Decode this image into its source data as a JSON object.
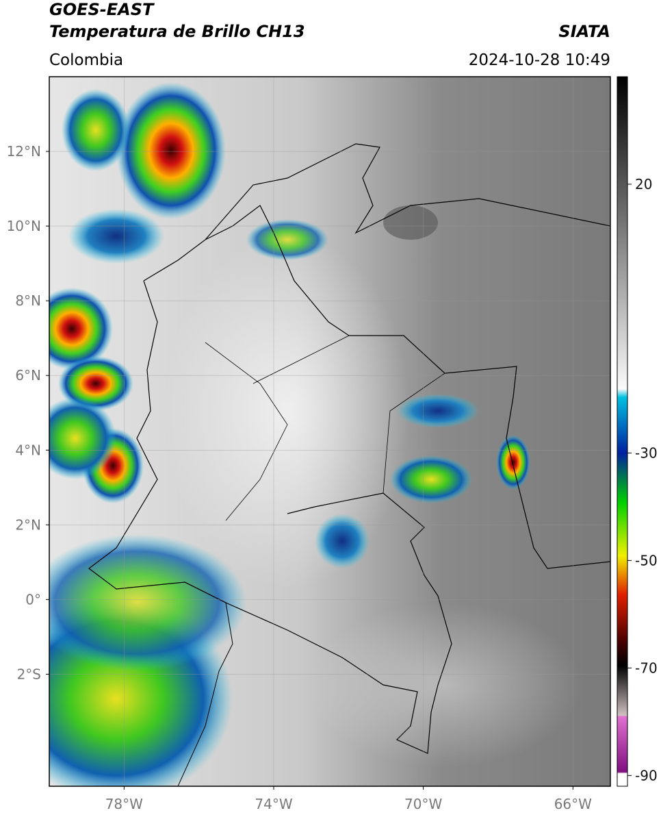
{
  "header": {
    "title": "GOES-EAST",
    "subtitle": "Temperatura de Brillo CH13",
    "region": "Colombia",
    "source": "SIATA",
    "datetime": "2024-10-28 10:49"
  },
  "map": {
    "lonlim": [
      -80,
      -65
    ],
    "latlim": [
      -5,
      14
    ],
    "lon_ticks": [
      {
        "value": -78,
        "label": "78°W"
      },
      {
        "value": -74,
        "label": "74°W"
      },
      {
        "value": -70,
        "label": "70°W"
      },
      {
        "value": -66,
        "label": "66°W"
      }
    ],
    "lat_ticks": [
      {
        "value": 12,
        "label": "12°N"
      },
      {
        "value": 10,
        "label": "10°N"
      },
      {
        "value": 8,
        "label": "8°N"
      },
      {
        "value": 6,
        "label": "6°N"
      },
      {
        "value": 4,
        "label": "4°N"
      },
      {
        "value": 2,
        "label": "2°N"
      },
      {
        "value": 0,
        "label": "0°"
      },
      {
        "value": -2,
        "label": "2°S"
      }
    ],
    "grid": true
  },
  "colorbar": {
    "lim": [
      -92,
      40
    ],
    "ticks": [
      20,
      -30,
      -50,
      -70,
      -90
    ]
  }
}
